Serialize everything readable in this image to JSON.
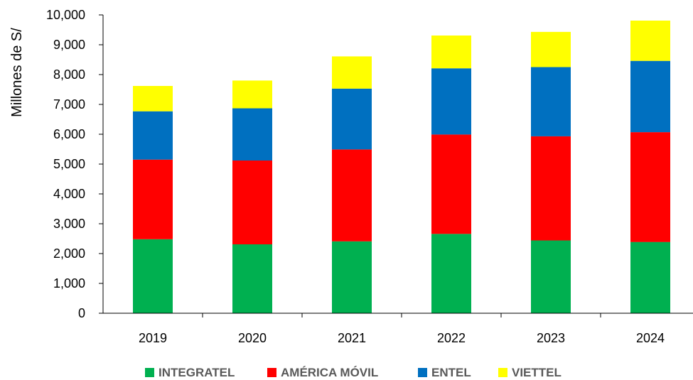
{
  "chart_data": {
    "type": "bar",
    "stacked": true,
    "title": "",
    "xlabel": "",
    "ylabel": "Millones de S/",
    "ylim": [
      0,
      10000
    ],
    "ytick_step": 1000,
    "ytick_labels": [
      "0",
      "1,000",
      "2,000",
      "3,000",
      "4,000",
      "5,000",
      "6,000",
      "7,000",
      "8,000",
      "9,000",
      "10,000"
    ],
    "categories": [
      "2019",
      "2020",
      "2021",
      "2022",
      "2023",
      "2024"
    ],
    "series": [
      {
        "name": "INTEGRATEL",
        "color": "#00B050",
        "values": [
          2480,
          2310,
          2410,
          2660,
          2440,
          2390
        ]
      },
      {
        "name": "AMÉRICA MÓVIL",
        "color": "#FF0000",
        "values": [
          2670,
          2810,
          3080,
          3330,
          3490,
          3680
        ]
      },
      {
        "name": "ENTEL",
        "color": "#0070C0",
        "values": [
          1620,
          1750,
          2040,
          2220,
          2320,
          2390
        ]
      },
      {
        "name": "VIETTEL",
        "color": "#FFFF00",
        "values": [
          850,
          930,
          1080,
          1100,
          1180,
          1350
        ]
      }
    ],
    "grid": false,
    "legend_position": "bottom"
  }
}
